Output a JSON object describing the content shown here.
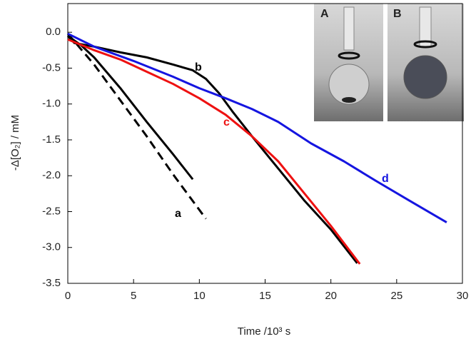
{
  "chart_data": {
    "type": "line",
    "xlabel": "Time /10³ s",
    "ylabel": "-Δ[O₂] / mM",
    "xlim": [
      0,
      30
    ],
    "xticks": [
      0,
      5,
      10,
      15,
      20,
      25,
      30
    ],
    "ylim": [
      -3.5,
      0.4
    ],
    "yticks": [
      {
        "value": 0,
        "label": "0.0"
      },
      {
        "value": -0.5,
        "label": "-0.5"
      },
      {
        "value": -1,
        "label": "-1.0"
      },
      {
        "value": -1.5,
        "label": "-1.5"
      },
      {
        "value": -2,
        "label": "-2.0"
      },
      {
        "value": -2.5,
        "label": "-2.5"
      },
      {
        "value": -3,
        "label": "-3.0"
      },
      {
        "value": -3.5,
        "label": "-3.5"
      }
    ],
    "series": [
      {
        "name": "a",
        "color": "#000000",
        "x": [
          0,
          1,
          2,
          4,
          6,
          8,
          9.5
        ],
        "values": [
          -0.05,
          -0.18,
          -0.35,
          -0.78,
          -1.25,
          -1.7,
          -2.05
        ]
      },
      {
        "color": "#000000",
        "dashed": true,
        "x": [
          0,
          2,
          4,
          6,
          8,
          10.5
        ],
        "values": [
          -0.02,
          -0.45,
          -0.95,
          -1.45,
          -1.98,
          -2.6
        ]
      },
      {
        "name": "b",
        "color": "#000000",
        "x": [
          0,
          0.5,
          2,
          4,
          6,
          8,
          9.5,
          10.5,
          11.5,
          12.5,
          14,
          16,
          18,
          20,
          22
        ],
        "values": [
          -0.05,
          -0.15,
          -0.2,
          -0.28,
          -0.35,
          -0.45,
          -0.53,
          -0.65,
          -0.85,
          -1.1,
          -1.45,
          -1.9,
          -2.35,
          -2.75,
          -3.22
        ]
      },
      {
        "name": "c",
        "color": "#ee1111",
        "x": [
          0,
          2,
          4,
          6,
          8,
          10,
          12,
          14,
          16,
          18,
          20,
          22.2
        ],
        "values": [
          -0.1,
          -0.25,
          -0.38,
          -0.55,
          -0.72,
          -0.92,
          -1.15,
          -1.45,
          -1.8,
          -2.25,
          -2.7,
          -3.23
        ]
      },
      {
        "name": "d",
        "color": "#1515e0",
        "x": [
          0,
          2,
          5,
          8,
          10,
          12,
          14,
          16,
          18.5,
          21,
          23.5,
          26,
          28.8
        ],
        "values": [
          -0.02,
          -0.2,
          -0.4,
          -0.62,
          -0.78,
          -0.92,
          -1.07,
          -1.25,
          -1.55,
          -1.8,
          -2.08,
          -2.35,
          -2.65
        ]
      }
    ],
    "annotations": [
      "A",
      "B"
    ]
  }
}
